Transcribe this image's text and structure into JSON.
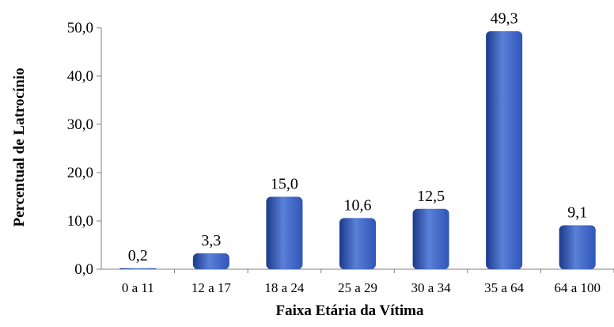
{
  "chart_data": {
    "type": "bar",
    "categories": [
      "0 a 11",
      "12 a 17",
      "18 a 24",
      "25 a 29",
      "30 a 34",
      "35 a 64",
      "64 a 100"
    ],
    "values": [
      0.2,
      3.3,
      15.0,
      10.6,
      12.5,
      49.3,
      9.1
    ],
    "data_labels": [
      "0,2",
      "3,3",
      "15,0",
      "10,6",
      "12,5",
      "49,3",
      "9,1"
    ],
    "yticks": [
      0,
      10,
      20,
      30,
      40,
      50
    ],
    "ytick_labels": [
      "0,0",
      "10,0",
      "20,0",
      "30,0",
      "40,0",
      "50,0"
    ],
    "ylim": [
      0,
      50
    ],
    "xlabel": "Faixa Etária da Vítima",
    "ylabel": "Percentual de Latrocínio",
    "bar_color": "#2f55b8",
    "bar_color_dark": "#1b3a8a",
    "bar_color_light": "#5a80d8",
    "grid": false,
    "legend": "none"
  }
}
